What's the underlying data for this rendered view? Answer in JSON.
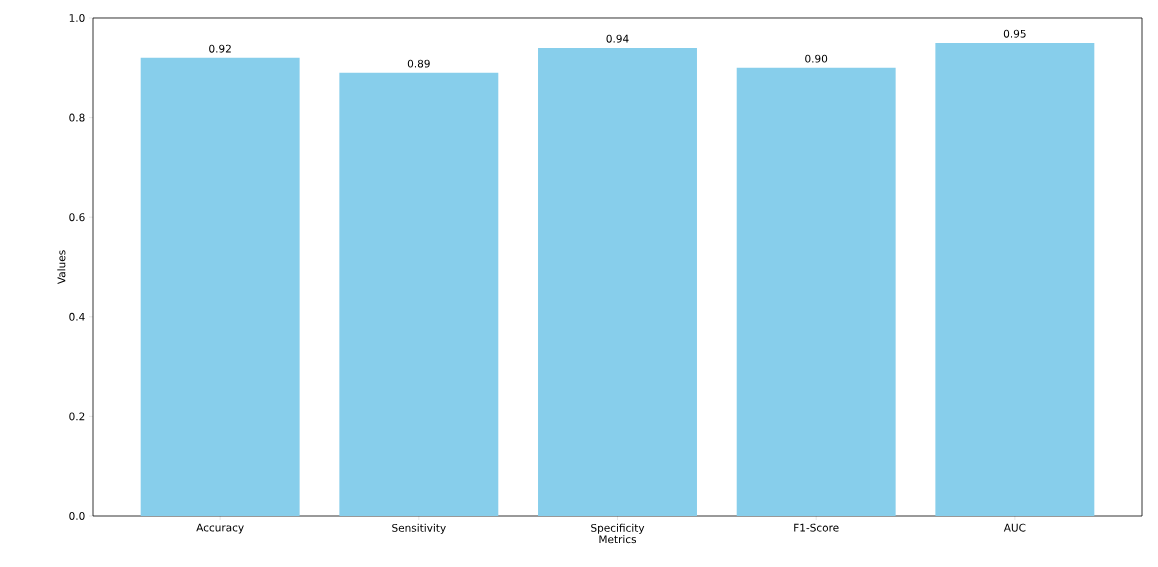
{
  "chart_data": {
    "type": "bar",
    "xlabel": "Metrics",
    "ylabel": "Values",
    "categories": [
      "Accuracy",
      "Sensitivity",
      "Specificity",
      "F1-Score",
      "AUC"
    ],
    "values": [
      0.92,
      0.89,
      0.94,
      0.9,
      0.95
    ],
    "value_labels": [
      "0.92",
      "0.89",
      "0.94",
      "0.90",
      "0.95"
    ],
    "color": "#87ceeb",
    "ylim": [
      0,
      1.0
    ],
    "yticks": [
      {
        "value": 0,
        "label": "0.0"
      },
      {
        "value": 0.2,
        "label": "0.2"
      },
      {
        "value": 0.4,
        "label": "0.4"
      },
      {
        "value": 0.6,
        "label": "0.6"
      },
      {
        "value": 0.8,
        "label": "0.8"
      },
      {
        "value": 1.0,
        "label": "1.0"
      }
    ],
    "grid": false
  }
}
